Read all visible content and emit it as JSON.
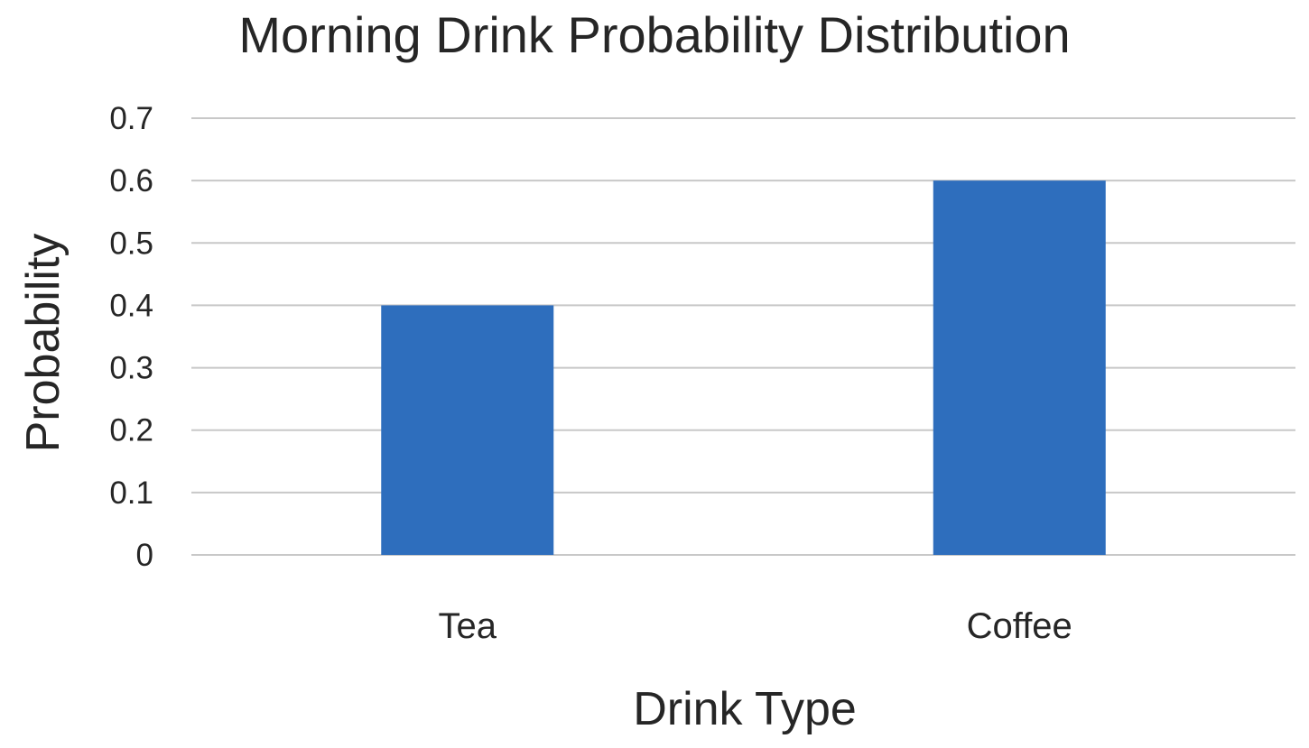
{
  "chart_data": {
    "type": "bar",
    "title": "Morning Drink Probability Distribution",
    "xlabel": "Drink Type",
    "ylabel": "Probability",
    "categories": [
      "Tea",
      "Coffee"
    ],
    "values": [
      0.4,
      0.6
    ],
    "ylim": [
      0,
      0.7
    ],
    "yticks": [
      "0",
      "0.1",
      "0.2",
      "0.3",
      "0.4",
      "0.5",
      "0.6",
      "0.7"
    ],
    "grid": true,
    "bar_color": "#2e6ebd"
  }
}
